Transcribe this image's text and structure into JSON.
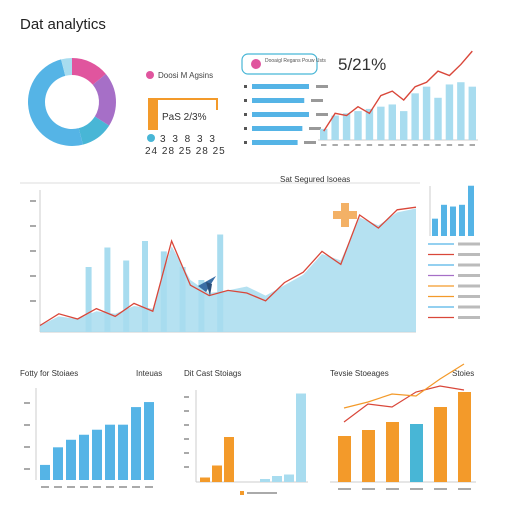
{
  "app_title": "Dat analytics",
  "colors": {
    "blue": "#55b4e6",
    "light_blue": "#a8dcef",
    "pink": "#e0559e",
    "purple": "#a66fc7",
    "orange": "#f39a2a",
    "red_line": "#d9473a",
    "teal": "#48b6d6"
  },
  "donut_panel": {
    "legend_label": "Doosi M Agsins",
    "percent_label": "PaS 2/3%",
    "numbers_row": "3 3 8 3 3",
    "numbers_row2": "24 28 25 28 25"
  },
  "top_right_panel": {
    "badge_text": "Dooaigl Regans Pouw Usts",
    "big_value": "5/21%"
  },
  "middle_panel": {
    "title": "Sat Segured Isoeas"
  },
  "bottom_panels": {
    "left_title": "Fotty for Stoiaes",
    "left_subtitle": "Inteuas",
    "middle_title": "Dit Cast Stoiags",
    "right_title": "Tevsie Stoeages",
    "right_subtitle": "Stoies"
  },
  "chart_data": [
    {
      "type": "pie",
      "name_hint": "donut",
      "values": [
        14,
        20,
        12,
        50,
        4
      ],
      "colors": [
        "#e0559e",
        "#a66fc7",
        "#48b6d6",
        "#55b4e6",
        "#a8dcef"
      ]
    },
    {
      "type": "bar",
      "name_hint": "small horizontal bars",
      "values": [
        60,
        55,
        60,
        53,
        48
      ],
      "xlim": [
        0,
        60
      ]
    },
    {
      "type": "bar",
      "name_hint": "top-right bars with line",
      "categories": [
        "1",
        "2",
        "3",
        "4",
        "5",
        "6",
        "7",
        "8",
        "9",
        "10",
        "11",
        "12",
        "13",
        "14"
      ],
      "series": [
        {
          "values": [
            10,
            22,
            24,
            26,
            28,
            30,
            32,
            26,
            42,
            48,
            38,
            50,
            52,
            48
          ]
        },
        {
          "values": [
            8,
            24,
            22,
            30,
            24,
            40,
            44,
            36,
            48,
            52,
            62,
            58,
            68,
            80
          ]
        }
      ],
      "ylim": [
        0,
        90
      ]
    },
    {
      "type": "area",
      "name_hint": "middle area chart",
      "x": [
        0,
        1,
        2,
        3,
        4,
        5,
        6,
        7,
        8,
        9,
        10,
        11,
        12,
        13,
        14,
        15,
        16,
        17,
        18,
        19,
        20
      ],
      "area": [
        5,
        12,
        10,
        16,
        14,
        20,
        18,
        66,
        40,
        30,
        32,
        35,
        28,
        36,
        44,
        60,
        55,
        88,
        82,
        92,
        95
      ],
      "line": [
        5,
        14,
        10,
        18,
        12,
        22,
        16,
        70,
        36,
        28,
        32,
        30,
        24,
        38,
        46,
        62,
        52,
        90,
        80,
        94,
        96
      ],
      "bars": [
        0,
        0,
        50,
        65,
        55,
        70,
        62,
        50,
        40,
        75,
        0,
        0,
        0,
        0,
        0,
        0,
        0,
        0,
        0,
        0,
        0
      ],
      "ylim": [
        0,
        100
      ]
    },
    {
      "type": "bar",
      "name_hint": "middle-right small bars",
      "values": [
        20,
        36,
        34,
        36,
        58
      ],
      "ylim": [
        0,
        60
      ]
    },
    {
      "type": "line",
      "name_hint": "middle-right legend lines",
      "series": [
        {
          "color": "#55b4e6",
          "values": [
            1
          ]
        },
        {
          "color": "#d9473a",
          "values": [
            1
          ]
        },
        {
          "color": "#55b4e6",
          "values": [
            1
          ]
        },
        {
          "color": "#a66fc7",
          "values": [
            1
          ]
        },
        {
          "color": "#f39a2a",
          "values": [
            1
          ]
        },
        {
          "color": "#f39a2a",
          "values": [
            1
          ]
        },
        {
          "color": "#55b4e6",
          "values": [
            1
          ]
        },
        {
          "color": "#d9473a",
          "values": [
            1
          ]
        }
      ]
    },
    {
      "type": "bar",
      "name_hint": "bottom-left bars",
      "categories": [
        "a",
        "b",
        "c",
        "d",
        "e",
        "f",
        "g",
        "h",
        "i"
      ],
      "values": [
        12,
        26,
        32,
        36,
        40,
        44,
        44,
        58,
        62
      ],
      "ylim": [
        0,
        70
      ]
    },
    {
      "type": "bar",
      "name_hint": "bottom-middle bars",
      "series": [
        {
          "values": [
            6,
            22,
            60,
            0,
            0,
            4,
            8,
            10,
            118
          ]
        }
      ],
      "ylim": [
        0,
        120
      ]
    },
    {
      "type": "bar",
      "name_hint": "bottom-right bars with line",
      "categories": [
        "a",
        "b",
        "c",
        "d",
        "e",
        "f"
      ],
      "series": [
        {
          "values": [
            46,
            52,
            60,
            58,
            75,
            90
          ]
        },
        {
          "values": [
            60,
            78,
            75,
            90,
            96,
            92
          ]
        }
      ],
      "ylim": [
        0,
        100
      ]
    }
  ]
}
